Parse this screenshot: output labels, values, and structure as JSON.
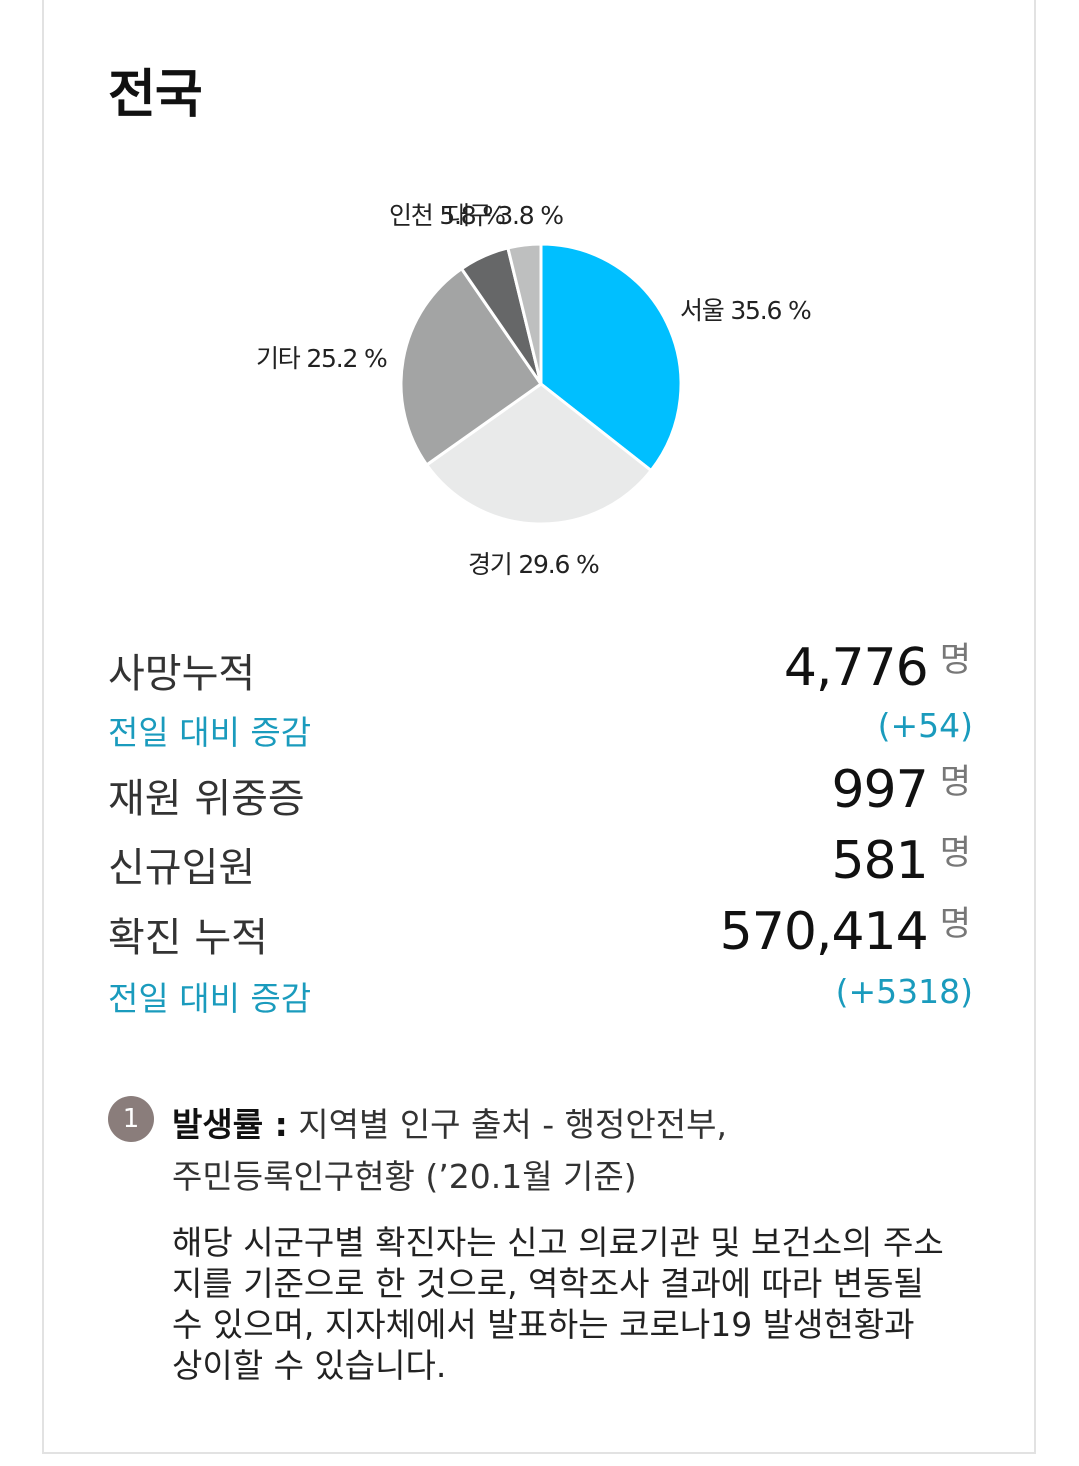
{
  "title": "전국",
  "chart_data": {
    "type": "pie",
    "slices": [
      {
        "label": "서울",
        "value": 35.6,
        "text": "서울 35.6 %",
        "color": "#00bfff"
      },
      {
        "label": "경기",
        "value": 29.6,
        "text": "경기 29.6 %",
        "color": "#e9eaea"
      },
      {
        "label": "기타",
        "value": 25.2,
        "text": "기타 25.2 %",
        "color": "#a3a4a4"
      },
      {
        "label": "인천",
        "value": 5.8,
        "text": "인천 5.8 %",
        "color": "#666768"
      },
      {
        "label": "대구",
        "value": 3.8,
        "text": "대구 3.8 %",
        "color": "#bebfbf"
      }
    ]
  },
  "stats": {
    "deaths": {
      "label": "사망누적",
      "value": "4,776",
      "unit": "명",
      "delta_label": "전일 대비 증감",
      "delta": "(+54)"
    },
    "critical": {
      "label": "재원 위중증",
      "value": "997",
      "unit": "명"
    },
    "new_admit": {
      "label": "신규입원",
      "value": "581",
      "unit": "명"
    },
    "confirmed": {
      "label": "확진 누적",
      "value": "570,414",
      "unit": "명",
      "delta_label": "전일 대비 증감",
      "delta": "(+5318)"
    }
  },
  "note": {
    "badge": "1",
    "heading": "발생률 :",
    "line1": " 지역별 인구 출처 - 행정안전부,",
    "line2": "주민등록인구현황 (’20.1월 기준)",
    "body": "해당 시군구별 확진자는 신고 의료기관 및 보건소의 주소지를 기준으로 한 것으로, 역학조사 결과에 따라 변동될 수 있으며, 지자체에서 발표하는 코로나19 발생현황과 상이할 수 있습니다."
  }
}
